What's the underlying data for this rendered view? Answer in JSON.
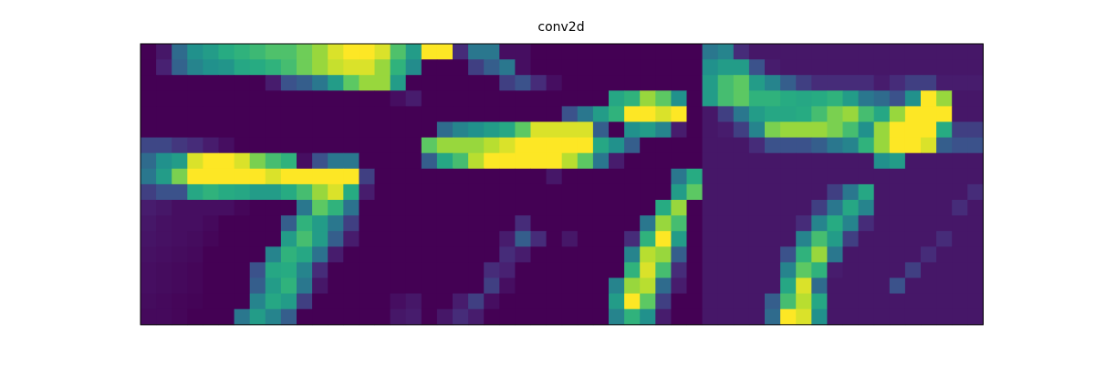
{
  "colors": {
    "background": "#ffffff",
    "frame": "#000000",
    "colormap": "viridis"
  },
  "chart_data": {
    "type": "heatmap",
    "title": "conv2d",
    "xlabel": "",
    "ylabel": "",
    "colormap": "viridis",
    "value_range": [
      0,
      1
    ],
    "axes_ticks": false,
    "grid": false,
    "panels": [
      {
        "values": [
          [
            0.0,
            0.08,
            0.35,
            0.5,
            0.55,
            0.62,
            0.65,
            0.68,
            0.72,
            0.72,
            0.78,
            0.85,
            0.95,
            1.0,
            1.0,
            0.95,
            0.72,
            0.55
          ],
          [
            0.0,
            0.12,
            0.32,
            0.45,
            0.5,
            0.52,
            0.6,
            0.62,
            0.65,
            0.7,
            0.78,
            0.85,
            0.92,
            0.95,
            0.95,
            0.85,
            0.65,
            0.48
          ],
          [
            0.0,
            0.0,
            0.0,
            0.0,
            0.0,
            0.0,
            0.0,
            0.0,
            0.1,
            0.25,
            0.3,
            0.4,
            0.55,
            0.75,
            0.85,
            0.85,
            0.55,
            0.0
          ],
          [
            0.0,
            0.0,
            0.0,
            0.0,
            0.0,
            0.0,
            0.0,
            0.0,
            0.0,
            0.0,
            0.0,
            0.0,
            0.0,
            0.0,
            0.0,
            0.0,
            0.05,
            0.1
          ],
          [
            0.0,
            0.0,
            0.0,
            0.0,
            0.0,
            0.0,
            0.0,
            0.0,
            0.0,
            0.0,
            0.0,
            0.0,
            0.0,
            0.0,
            0.0,
            0.0,
            0.0,
            0.0
          ],
          [
            0.0,
            0.0,
            0.0,
            0.0,
            0.0,
            0.0,
            0.0,
            0.0,
            0.0,
            0.0,
            0.0,
            0.0,
            0.0,
            0.0,
            0.0,
            0.0,
            0.0,
            0.0
          ],
          [
            0.22,
            0.22,
            0.18,
            0.15,
            0.1,
            0.05,
            0.0,
            0.0,
            0.0,
            0.0,
            0.0,
            0.0,
            0.0,
            0.0,
            0.0,
            0.0,
            0.0,
            0.0
          ],
          [
            0.35,
            0.5,
            0.55,
            0.95,
            1.0,
            1.0,
            0.95,
            0.8,
            0.7,
            0.65,
            0.05,
            0.25,
            0.4,
            0.4,
            0.0,
            0.0,
            0.0,
            0.0
          ],
          [
            0.4,
            0.55,
            0.8,
            1.0,
            1.0,
            1.0,
            1.0,
            1.0,
            0.95,
            1.0,
            1.0,
            1.0,
            1.0,
            1.0,
            0.2,
            0.0,
            0.0,
            0.0
          ],
          [
            0.2,
            0.25,
            0.25,
            0.6,
            0.65,
            0.62,
            0.6,
            0.55,
            0.55,
            0.62,
            0.7,
            0.85,
            0.95,
            0.62,
            0.1,
            0.0,
            0.0,
            0.0
          ],
          [
            0.1,
            0.08,
            0.05,
            0.05,
            0.05,
            0.05,
            0.02,
            0.0,
            0.0,
            0.0,
            0.4,
            0.75,
            0.65,
            0.38,
            0.0,
            0.0,
            0.0,
            0.0
          ],
          [
            0.08,
            0.06,
            0.05,
            0.05,
            0.03,
            0.0,
            0.0,
            0.0,
            0.0,
            0.3,
            0.65,
            0.55,
            0.4,
            0.2,
            0.0,
            0.0,
            0.0,
            0.0
          ],
          [
            0.07,
            0.06,
            0.05,
            0.04,
            0.02,
            0.0,
            0.0,
            0.0,
            0.0,
            0.55,
            0.7,
            0.55,
            0.3,
            0.1,
            0.0,
            0.0,
            0.0,
            0.0
          ],
          [
            0.06,
            0.05,
            0.04,
            0.03,
            0.0,
            0.0,
            0.0,
            0.0,
            0.45,
            0.65,
            0.6,
            0.38,
            0.1,
            0.0,
            0.0,
            0.0,
            0.0,
            0.0
          ],
          [
            0.05,
            0.04,
            0.03,
            0.02,
            0.0,
            0.0,
            0.0,
            0.25,
            0.6,
            0.62,
            0.45,
            0.15,
            0.0,
            0.0,
            0.0,
            0.0,
            0.0,
            0.0
          ],
          [
            0.05,
            0.04,
            0.03,
            0.02,
            0.0,
            0.0,
            0.0,
            0.3,
            0.55,
            0.65,
            0.4,
            0.08,
            0.0,
            0.0,
            0.0,
            0.0,
            0.0,
            0.0
          ],
          [
            0.04,
            0.03,
            0.02,
            0.01,
            0.0,
            0.0,
            0.0,
            0.45,
            0.6,
            0.55,
            0.2,
            0.0,
            0.0,
            0.0,
            0.0,
            0.0,
            0.05,
            0.08
          ],
          [
            0.03,
            0.03,
            0.02,
            0.0,
            0.0,
            0.0,
            0.4,
            0.55,
            0.45,
            0.3,
            0.0,
            0.0,
            0.0,
            0.0,
            0.0,
            0.0,
            0.08,
            0.1
          ]
        ]
      },
      {
        "values": [
          [
            1.0,
            1.0,
            0.15,
            0.4,
            0.4,
            0.05,
            0.05,
            0.0,
            0.0,
            0.0,
            0.0,
            0.0,
            0.0,
            0.0,
            0.0,
            0.0,
            0.0,
            0.0
          ],
          [
            0.0,
            0.0,
            0.0,
            0.2,
            0.3,
            0.4,
            0.05,
            0.0,
            0.0,
            0.0,
            0.0,
            0.0,
            0.0,
            0.0,
            0.0,
            0.0,
            0.0,
            0.0
          ],
          [
            0.0,
            0.0,
            0.0,
            0.0,
            0.0,
            0.2,
            0.25,
            0.15,
            0.05,
            0.0,
            0.0,
            0.0,
            0.0,
            0.0,
            0.0,
            0.0,
            0.0,
            0.0
          ],
          [
            0.0,
            0.0,
            0.0,
            0.0,
            0.0,
            0.0,
            0.0,
            0.0,
            0.0,
            0.0,
            0.0,
            0.0,
            0.6,
            0.65,
            0.85,
            0.75,
            0.5,
            0.0
          ],
          [
            0.0,
            0.0,
            0.0,
            0.0,
            0.0,
            0.0,
            0.0,
            0.0,
            0.0,
            0.25,
            0.4,
            0.55,
            0.65,
            1.0,
            1.0,
            0.95,
            1.0,
            0.0
          ],
          [
            0.0,
            0.35,
            0.45,
            0.5,
            0.55,
            0.6,
            0.75,
            0.95,
            0.95,
            0.95,
            0.95,
            0.3,
            0.0,
            0.5,
            0.55,
            0.45,
            0.1,
            0.0
          ],
          [
            0.75,
            0.85,
            0.85,
            0.85,
            0.9,
            0.95,
            1.0,
            1.0,
            1.0,
            1.0,
            1.0,
            0.6,
            0.5,
            0.3,
            0.0,
            0.0,
            0.0,
            0.0
          ],
          [
            0.3,
            0.6,
            0.7,
            0.9,
            1.0,
            1.0,
            1.0,
            1.0,
            1.0,
            0.9,
            0.75,
            0.4,
            0.1,
            0.0,
            0.0,
            0.0,
            0.0,
            0.0
          ],
          [
            0.0,
            0.0,
            0.0,
            0.0,
            0.0,
            0.0,
            0.0,
            0.0,
            0.08,
            0.0,
            0.0,
            0.0,
            0.0,
            0.0,
            0.0,
            0.0,
            0.4,
            0.62
          ],
          [
            0.0,
            0.0,
            0.0,
            0.0,
            0.0,
            0.0,
            0.0,
            0.0,
            0.0,
            0.0,
            0.0,
            0.0,
            0.0,
            0.0,
            0.0,
            0.0,
            0.55,
            0.75
          ],
          [
            0.0,
            0.0,
            0.0,
            0.0,
            0.0,
            0.0,
            0.0,
            0.0,
            0.0,
            0.0,
            0.0,
            0.0,
            0.0,
            0.0,
            0.0,
            0.62,
            0.85,
            0.0
          ],
          [
            0.0,
            0.0,
            0.0,
            0.0,
            0.0,
            0.0,
            0.15,
            0.0,
            0.0,
            0.0,
            0.0,
            0.0,
            0.0,
            0.0,
            0.4,
            0.85,
            0.7,
            0.0
          ],
          [
            0.0,
            0.0,
            0.0,
            0.0,
            0.0,
            0.1,
            0.3,
            0.15,
            0.0,
            0.08,
            0.0,
            0.0,
            0.0,
            0.15,
            0.65,
            1.0,
            0.55,
            0.0
          ],
          [
            0.0,
            0.0,
            0.0,
            0.0,
            0.0,
            0.15,
            0.1,
            0.0,
            0.0,
            0.0,
            0.0,
            0.0,
            0.0,
            0.45,
            0.9,
            0.85,
            0.3,
            0.0
          ],
          [
            0.0,
            0.0,
            0.0,
            0.0,
            0.15,
            0.12,
            0.0,
            0.0,
            0.0,
            0.0,
            0.0,
            0.0,
            0.0,
            0.65,
            0.95,
            0.7,
            0.15,
            0.0
          ],
          [
            0.0,
            0.0,
            0.0,
            0.0,
            0.2,
            0.05,
            0.0,
            0.0,
            0.0,
            0.0,
            0.0,
            0.0,
            0.45,
            0.85,
            0.9,
            0.35,
            0.1,
            0.0
          ],
          [
            0.0,
            0.0,
            0.1,
            0.2,
            0.05,
            0.0,
            0.0,
            0.0,
            0.0,
            0.0,
            0.0,
            0.0,
            0.55,
            1.0,
            0.75,
            0.2,
            0.0,
            0.0
          ],
          [
            0.0,
            0.08,
            0.15,
            0.1,
            0.0,
            0.0,
            0.0,
            0.0,
            0.0,
            0.0,
            0.0,
            0.0,
            0.45,
            0.65,
            0.5,
            0.1,
            0.0,
            0.0
          ]
        ]
      },
      {
        "values": [
          [
            0.4,
            0.45,
            0.15,
            0.08,
            0.08,
            0.08,
            0.08,
            0.08,
            0.08,
            0.08,
            0.08,
            0.08,
            0.08,
            0.08,
            0.08,
            0.08,
            0.08,
            0.08
          ],
          [
            0.5,
            0.55,
            0.55,
            0.25,
            0.1,
            0.08,
            0.08,
            0.08,
            0.08,
            0.08,
            0.08,
            0.08,
            0.08,
            0.08,
            0.08,
            0.08,
            0.08,
            0.08
          ],
          [
            0.55,
            0.7,
            0.75,
            0.55,
            0.45,
            0.3,
            0.2,
            0.15,
            0.15,
            0.15,
            0.15,
            0.1,
            0.15,
            0.2,
            0.2,
            0.1,
            0.1,
            0.1
          ],
          [
            0.55,
            0.7,
            0.75,
            0.65,
            0.65,
            0.62,
            0.6,
            0.62,
            0.65,
            0.55,
            0.4,
            0.35,
            0.25,
            0.5,
            1.0,
            0.85,
            0.08,
            0.08
          ],
          [
            0.08,
            0.2,
            0.4,
            0.55,
            0.6,
            0.6,
            0.62,
            0.7,
            0.8,
            0.85,
            0.7,
            0.6,
            0.85,
            1.0,
            1.0,
            1.0,
            0.08,
            0.08
          ],
          [
            0.08,
            0.1,
            0.2,
            0.45,
            0.8,
            0.85,
            0.85,
            0.85,
            0.8,
            0.7,
            0.5,
            0.85,
            1.0,
            1.0,
            1.0,
            0.62,
            0.2,
            0.2
          ],
          [
            0.08,
            0.08,
            0.08,
            0.15,
            0.25,
            0.25,
            0.25,
            0.3,
            0.4,
            0.45,
            0.65,
            0.85,
            1.0,
            1.0,
            0.95,
            0.3,
            0.25,
            0.25
          ],
          [
            0.08,
            0.08,
            0.08,
            0.08,
            0.08,
            0.08,
            0.08,
            0.08,
            0.08,
            0.08,
            0.08,
            0.5,
            0.55,
            0.08,
            0.08,
            0.08,
            0.08,
            0.08
          ],
          [
            0.08,
            0.08,
            0.08,
            0.08,
            0.08,
            0.08,
            0.08,
            0.08,
            0.08,
            0.08,
            0.08,
            0.08,
            0.08,
            0.08,
            0.08,
            0.08,
            0.08,
            0.08
          ],
          [
            0.08,
            0.08,
            0.08,
            0.08,
            0.08,
            0.08,
            0.08,
            0.08,
            0.2,
            0.4,
            0.6,
            0.08,
            0.08,
            0.08,
            0.08,
            0.08,
            0.08,
            0.15
          ],
          [
            0.08,
            0.08,
            0.08,
            0.08,
            0.08,
            0.08,
            0.08,
            0.2,
            0.4,
            0.6,
            0.45,
            0.08,
            0.08,
            0.08,
            0.08,
            0.08,
            0.15,
            0.08
          ],
          [
            0.08,
            0.08,
            0.08,
            0.08,
            0.08,
            0.08,
            0.15,
            0.45,
            0.62,
            0.45,
            0.15,
            0.08,
            0.08,
            0.08,
            0.08,
            0.08,
            0.08,
            0.08
          ],
          [
            0.08,
            0.08,
            0.08,
            0.08,
            0.08,
            0.08,
            0.45,
            0.7,
            0.55,
            0.2,
            0.08,
            0.08,
            0.08,
            0.08,
            0.08,
            0.15,
            0.08,
            0.08
          ],
          [
            0.08,
            0.08,
            0.08,
            0.08,
            0.08,
            0.25,
            0.65,
            0.85,
            0.4,
            0.08,
            0.08,
            0.08,
            0.08,
            0.08,
            0.15,
            0.08,
            0.08,
            0.08
          ],
          [
            0.08,
            0.08,
            0.08,
            0.08,
            0.08,
            0.45,
            0.75,
            0.65,
            0.1,
            0.08,
            0.08,
            0.08,
            0.08,
            0.2,
            0.08,
            0.08,
            0.08,
            0.08
          ],
          [
            0.08,
            0.08,
            0.08,
            0.08,
            0.08,
            0.6,
            0.95,
            0.35,
            0.08,
            0.08,
            0.08,
            0.08,
            0.25,
            0.08,
            0.08,
            0.08,
            0.08,
            0.08
          ],
          [
            0.08,
            0.08,
            0.08,
            0.08,
            0.3,
            0.7,
            0.9,
            0.6,
            0.08,
            0.08,
            0.08,
            0.08,
            0.08,
            0.08,
            0.08,
            0.08,
            0.08,
            0.08
          ],
          [
            0.08,
            0.08,
            0.08,
            0.08,
            0.35,
            1.0,
            0.95,
            0.5,
            0.08,
            0.08,
            0.08,
            0.08,
            0.08,
            0.08,
            0.08,
            0.08,
            0.08,
            0.08
          ]
        ]
      }
    ]
  }
}
